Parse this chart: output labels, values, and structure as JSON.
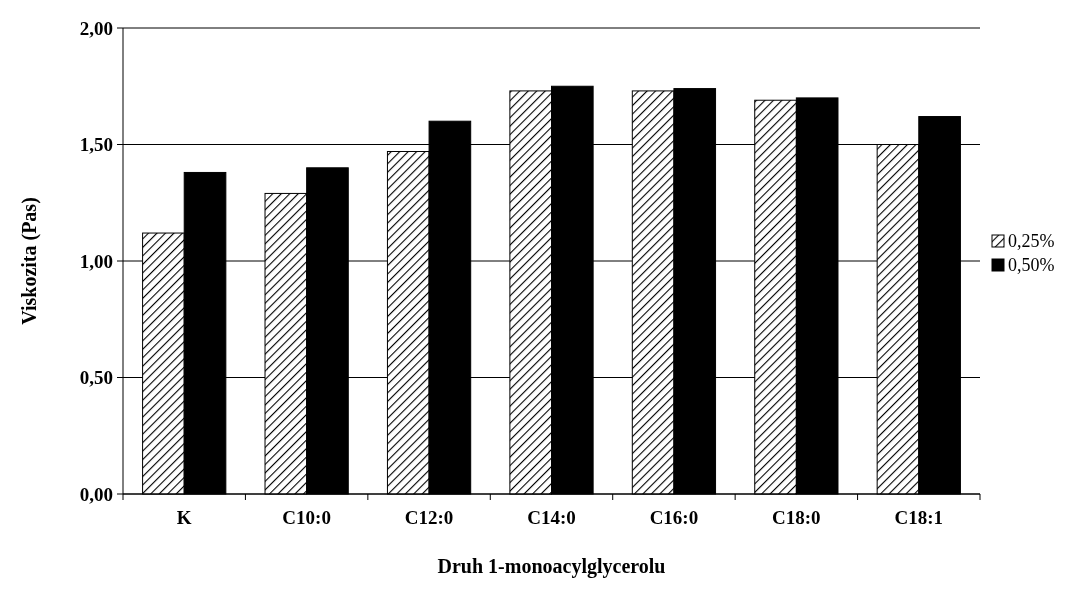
{
  "chart_data": {
    "type": "bar",
    "xlabel": "Druh 1-monoacylglycerolu",
    "ylabel": "Viskozita (Pas)",
    "categories": [
      "K",
      "C10:0",
      "C12:0",
      "C14:0",
      "C16:0",
      "C18:0",
      "C18:1"
    ],
    "series": [
      {
        "name": "0,25%",
        "color": "#000000",
        "values": [
          1.12,
          1.29,
          1.47,
          1.73,
          1.73,
          1.69,
          1.5
        ]
      },
      {
        "name": "0,50%",
        "color": "#000000",
        "values": [
          1.38,
          1.4,
          1.6,
          1.75,
          1.74,
          1.7,
          1.62
        ]
      }
    ],
    "ylim": [
      0,
      2
    ],
    "yticks": [
      {
        "value": 0,
        "label": "0,00"
      },
      {
        "value": 0.5,
        "label": "0,50"
      },
      {
        "value": 1,
        "label": "1,00"
      },
      {
        "value": 1.5,
        "label": "1,50"
      },
      {
        "value": 2,
        "label": "2,00"
      }
    ],
    "grid": "y",
    "legend": "right"
  }
}
